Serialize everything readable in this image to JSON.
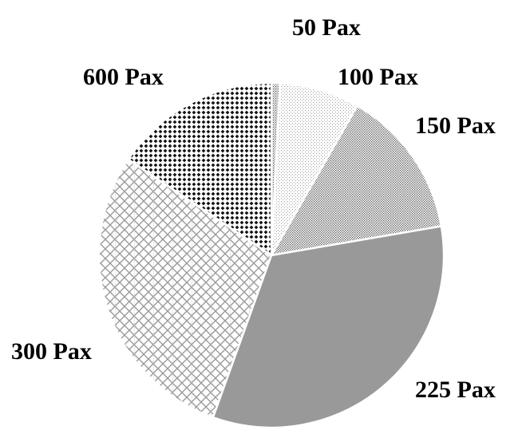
{
  "chart_data": {
    "type": "pie",
    "title": "",
    "categories": [
      "50 Pax",
      "100 Pax",
      "150 Pax",
      "225 Pax",
      "300 Pax",
      "600 Pax"
    ],
    "values": [
      0.8,
      7.5,
      14.0,
      33.2,
      28.9,
      15.6
    ],
    "unit": "percent of total (estimated)",
    "start_angle_deg": 0,
    "direction": "clockwise",
    "legend": "none (labels placed beside slices)",
    "fills": [
      {
        "pattern": "fine-stipple",
        "fg": "#555555",
        "bg": "#e8e8e8"
      },
      {
        "pattern": "sparse-dots",
        "fg": "#9a9a9a",
        "bg": "#ffffff"
      },
      {
        "pattern": "medium-dots",
        "fg": "#6a6a6a",
        "bg": "#ffffff"
      },
      {
        "pattern": "solid",
        "fg": "#999999",
        "bg": "#999999"
      },
      {
        "pattern": "crosshatch-grid",
        "fg": "#8a8a8a",
        "bg": "#ffffff"
      },
      {
        "pattern": "dark-diamonds",
        "fg": "#111111",
        "bg": "#ffffff"
      }
    ]
  }
}
